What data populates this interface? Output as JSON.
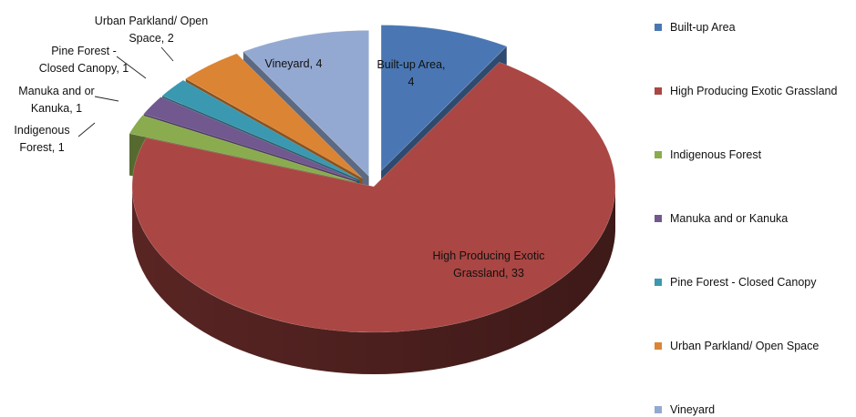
{
  "chart_data": {
    "type": "pie",
    "title": "",
    "three_d": true,
    "exploded": true,
    "legend_position": "right",
    "categories": [
      "Built-up Area",
      "High Producing Exotic Grassland",
      "Indigenous Forest",
      "Manuka and or Kanuka",
      "Pine Forest - Closed Canopy",
      "Urban Parkland/ Open Space",
      "Vineyard"
    ],
    "values": [
      4,
      33,
      1,
      1,
      1,
      2,
      4
    ],
    "colors": [
      "#4a77b3",
      "#aa4643",
      "#8aab4e",
      "#71588f",
      "#3a98b0",
      "#db8434",
      "#94a9d1"
    ],
    "data_labels": [
      [
        "Built-up Area,",
        "4"
      ],
      [
        "High Producing Exotic",
        "Grassland, 33"
      ],
      [
        "Indigenous",
        "Forest, 1"
      ],
      [
        "Manuka and or",
        "Kanuka, 1"
      ],
      [
        "Pine Forest -",
        "Closed Canopy, 1"
      ],
      [
        "Urban Parkland/ Open",
        "Space, 2"
      ],
      [
        "Vineyard, 4"
      ]
    ]
  }
}
